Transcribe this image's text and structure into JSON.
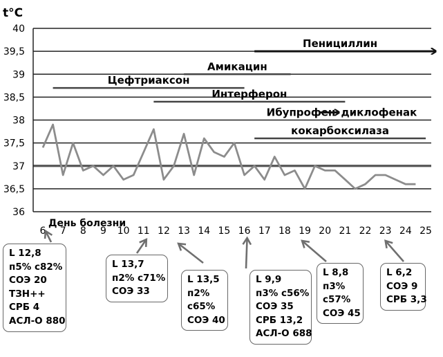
{
  "chart_data": {
    "type": "line",
    "ylabel": "t°C",
    "xlabel": "День болезни",
    "ylim": [
      36,
      40
    ],
    "xlim": [
      6,
      25
    ],
    "yticks": [
      "40",
      "39,5",
      "39",
      "38,5",
      "38",
      "37,5",
      "37",
      "36,5",
      "36"
    ],
    "xticks": [
      "6",
      "7",
      "8",
      "9",
      "10",
      "11",
      "12",
      "13",
      "14",
      "15",
      "16",
      "17",
      "18",
      "19",
      "20",
      "21",
      "22",
      "23",
      "24",
      "25"
    ],
    "reference_line": 37,
    "series": [
      {
        "x": [
          6,
          6.5,
          7,
          7.5,
          8,
          8.5,
          9,
          9.5,
          10,
          10.5,
          11,
          11.5,
          12,
          12.5,
          13,
          13.5,
          14,
          14.5,
          15,
          15.5,
          16,
          16.5,
          17,
          17.5,
          18,
          18.5,
          19,
          19.5,
          20,
          20.5,
          21,
          21.5,
          22,
          22.5,
          23,
          23.5,
          24,
          24.5
        ],
        "y": [
          37.4,
          37.9,
          36.8,
          37.5,
          36.9,
          37.0,
          36.8,
          37.0,
          36.7,
          36.8,
          37.3,
          37.8,
          36.7,
          37.0,
          37.7,
          36.8,
          37.6,
          37.3,
          37.2,
          37.5,
          36.8,
          37.0,
          36.7,
          37.2,
          36.8,
          36.9,
          36.5,
          37.0,
          36.9,
          36.9,
          36.7,
          36.5,
          36.6,
          36.8,
          36.8,
          36.7,
          36.6,
          36.6
        ]
      }
    ],
    "treatments": [
      {
        "label": "Пенициллин",
        "start": 16.5,
        "end": 25.5,
        "y": 39.5,
        "arrow": true
      },
      {
        "label": "Амикацин",
        "start": 13,
        "end": 18.3,
        "y": 39.0,
        "arrow": false
      },
      {
        "label": "Цефтриаксон",
        "start": 6.5,
        "end": 16,
        "y": 38.7,
        "arrow": false
      },
      {
        "label": "Интерферон",
        "start": 11.5,
        "end": 21,
        "y": 38.4,
        "arrow": false
      },
      {
        "label": "Ибупрофен",
        "label2": "диклофенак",
        "y": 38.0
      },
      {
        "label": "кокарбоксилаза",
        "start": 16.5,
        "end": 25,
        "y": 37.6,
        "arrow": false
      }
    ],
    "lab_results": [
      {
        "day": 6,
        "lines": [
          "L 12,8",
          "п5% с82%",
          "СОЭ 20",
          "ТЗН++",
          "СРБ 4",
          "АСЛ-О 880"
        ]
      },
      {
        "day": 11,
        "lines": [
          "L 13,7",
          "п2% с71%",
          "СОЭ 33"
        ]
      },
      {
        "day": 13,
        "lines": [
          "L 13,5",
          "п2%",
          "с65%",
          "СОЭ 40"
        ]
      },
      {
        "day": 16,
        "lines": [
          "L 9,9",
          "п3% с56%",
          "СОЭ 35",
          "СРБ 13,2",
          "АСЛ-О 688"
        ]
      },
      {
        "day": 19,
        "lines": [
          "L 8,8",
          "п3%",
          "с57%",
          "СОЭ 45"
        ]
      },
      {
        "day": 23,
        "lines": [
          "L 6,2",
          "СОЭ 9",
          "СРБ 3,3"
        ]
      }
    ]
  }
}
